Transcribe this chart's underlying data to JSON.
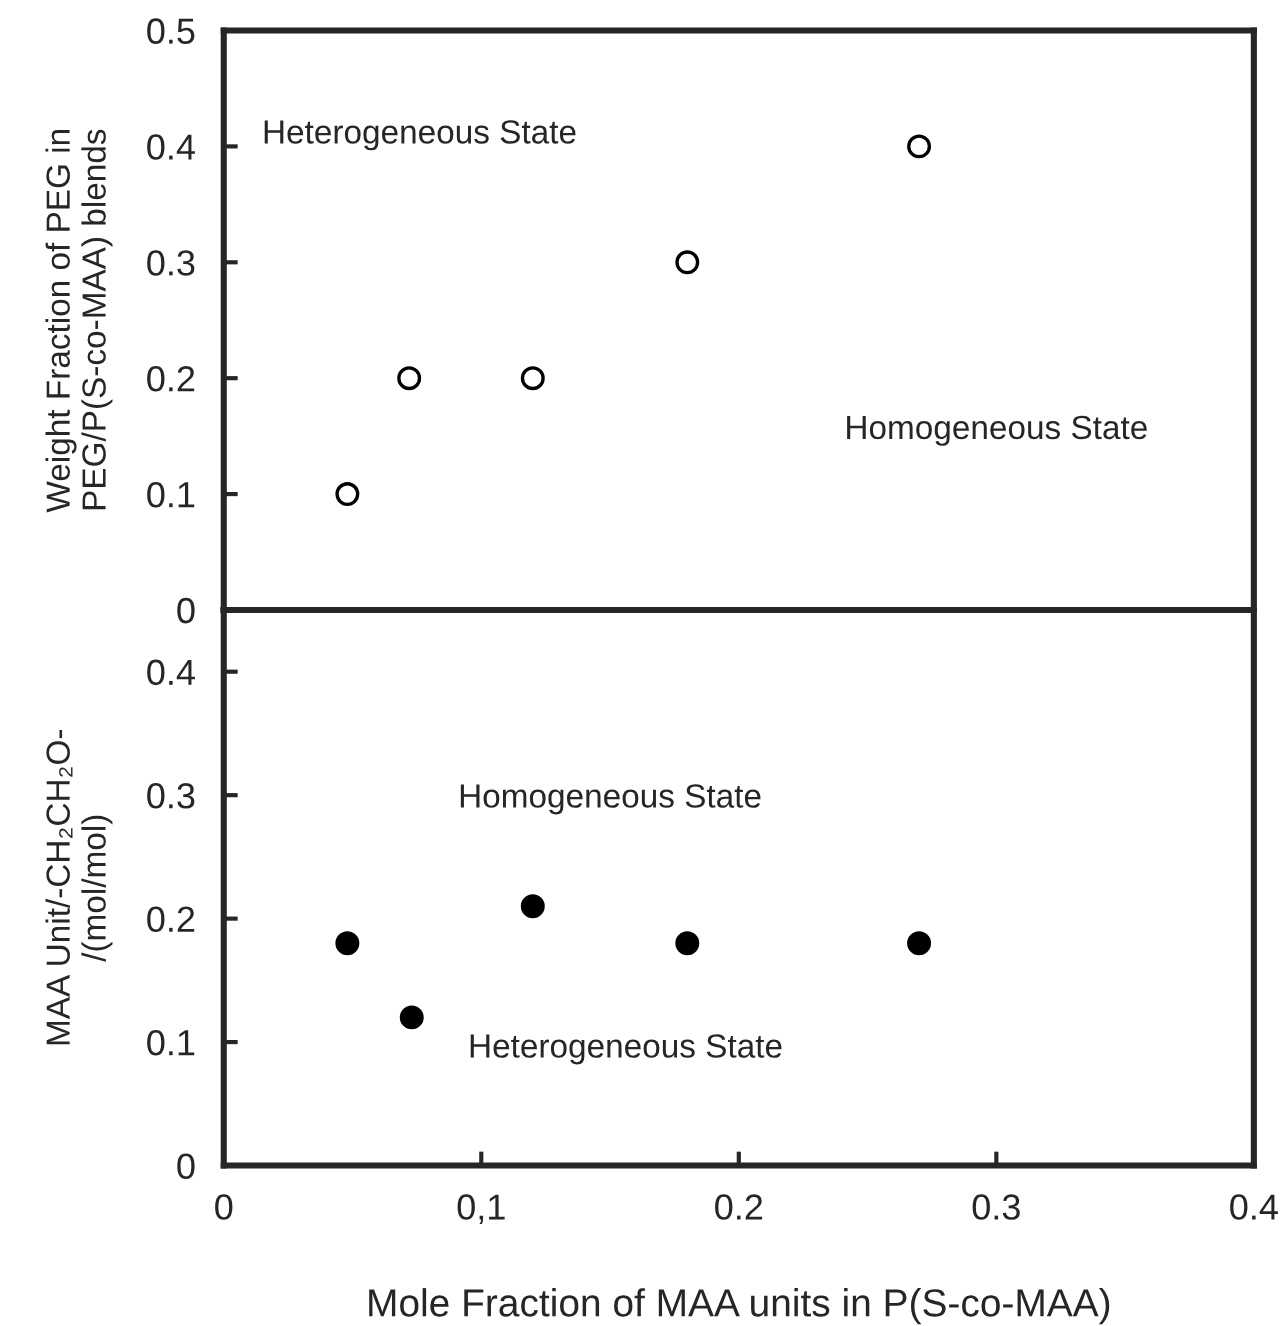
{
  "chart_data": [
    {
      "type": "scatter",
      "ylabel": "Weight Fraction of PEG in\nPEG/P(S-co-MAA) blends",
      "x": [
        0.048,
        0.072,
        0.12,
        0.18,
        0.27
      ],
      "series": [
        {
          "color": "#ffffff",
          "values": [
            0.1,
            0.2,
            0.2,
            0.3,
            0.4
          ]
        }
      ],
      "marker": "circle",
      "xlim": [
        0,
        0.4
      ],
      "ylim": [
        0,
        0.5
      ],
      "yticks": [
        0,
        0.1,
        0.2,
        0.3,
        0.4,
        0.5
      ],
      "tick_labels": "y",
      "grid": false,
      "annotations": [
        "Heterogeneous State",
        "Homogeneous State"
      ]
    },
    {
      "type": "scatter",
      "xlabel": "Mole Fraction of MAA units in P(S-co-MAA)",
      "ylabel": "MAA Unit/-CH₂CH₂O-\n/(mol/mol)",
      "x": [
        0.048,
        0.073,
        0.12,
        0.18,
        0.27
      ],
      "series": [
        {
          "color": "#000000",
          "values": [
            0.18,
            0.12,
            0.21,
            0.18,
            0.18
          ]
        }
      ],
      "marker": "circle",
      "xlim": [
        0,
        0.4
      ],
      "ylim": [
        0,
        0.45
      ],
      "xticks": [
        0,
        {
          "value": 0.1,
          "label": "0,1"
        },
        0.2,
        0.3,
        0.4
      ],
      "yticks": [
        0,
        0.1,
        0.2,
        0.3,
        0.4
      ],
      "grid": false,
      "annotations": [
        "Homogeneous State",
        "Heterogeneous State"
      ]
    }
  ]
}
